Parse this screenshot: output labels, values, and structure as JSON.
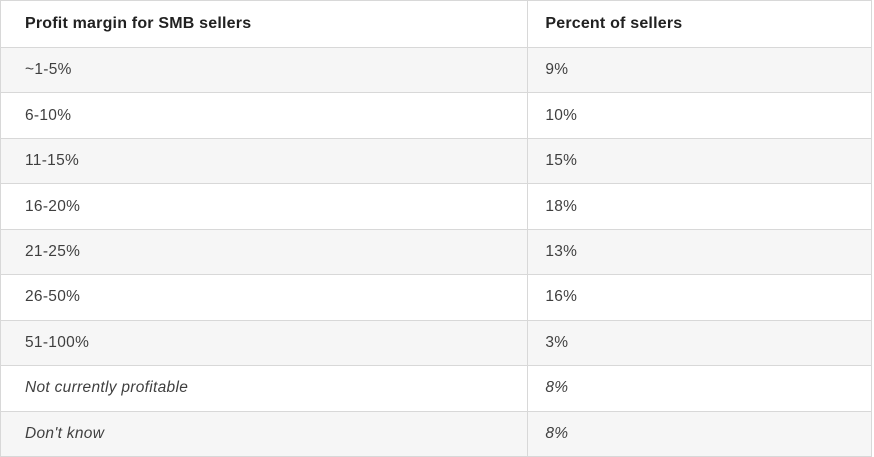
{
  "colors": {
    "border": "#d8d8d8",
    "row_bg": "#ffffff",
    "row_alt_bg": "#f6f6f6",
    "header_text": "#212121",
    "body_text": "#3f3f3f"
  },
  "table": {
    "columns": [
      "Profit margin for SMB sellers",
      "Percent of sellers"
    ],
    "rows": [
      {
        "label": "~1-5%",
        "value": "9%"
      },
      {
        "label": "6-10%",
        "value": "10%"
      },
      {
        "label": "11-15%",
        "value": "15%"
      },
      {
        "label": "16-20%",
        "value": "18%"
      },
      {
        "label": "21-25%",
        "value": "13%"
      },
      {
        "label": "26-50%",
        "value": "16%"
      },
      {
        "label": "51-100%",
        "value": "3%"
      },
      {
        "label": "Not currently profitable",
        "value": "8%"
      },
      {
        "label": "Don't know",
        "value": "8%"
      }
    ]
  },
  "chart_data": {
    "type": "table",
    "title": "Profit margin for SMB sellers",
    "columns": [
      "Profit margin for SMB sellers",
      "Percent of sellers"
    ],
    "categories": [
      "~1-5%",
      "6-10%",
      "11-15%",
      "16-20%",
      "21-25%",
      "26-50%",
      "51-100%",
      "Not currently profitable",
      "Don't know"
    ],
    "values_percent": [
      9,
      10,
      15,
      18,
      13,
      16,
      3,
      8,
      8
    ],
    "notes": "Last two categories shown in italics; rows alternate white and light gray backgrounds"
  }
}
